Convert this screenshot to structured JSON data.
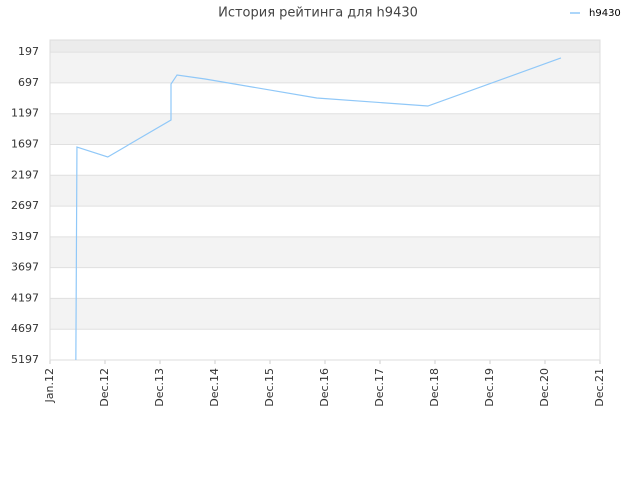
{
  "chart_data": {
    "type": "line",
    "title": "История рейтинга для h9430",
    "x": [
      0.47,
      0.49,
      1.05,
      2.2,
      2.2,
      2.31,
      2.82,
      4.85,
      6.87,
      9.29
    ],
    "series": [
      {
        "name": "h9430",
        "color": "#90c8f8",
        "values": [
          5197,
          1738,
          1900,
          1299,
          715,
          568,
          633,
          942,
          1072,
          292
        ]
      }
    ],
    "xlim": [
      0,
      10
    ],
    "xticks": [
      {
        "value": 0,
        "label": "Jan.12"
      },
      {
        "value": 1,
        "label": "Dec.12"
      },
      {
        "value": 2,
        "label": "Dec.13"
      },
      {
        "value": 3,
        "label": "Dec.14"
      },
      {
        "value": 4,
        "label": "Dec.15"
      },
      {
        "value": 5,
        "label": "Dec.16"
      },
      {
        "value": 6,
        "label": "Dec.17"
      },
      {
        "value": 7,
        "label": "Dec.18"
      },
      {
        "value": 8,
        "label": "Dec.19"
      },
      {
        "value": 9,
        "label": "Dec.20"
      },
      {
        "value": 10,
        "label": "Dec.21"
      }
    ],
    "ylim": [
      5197,
      0
    ],
    "yticks": [
      197,
      697,
      1197,
      1697,
      2197,
      2697,
      3197,
      3697,
      4197,
      4697,
      5197
    ],
    "grid": true,
    "legend": "top-right"
  }
}
